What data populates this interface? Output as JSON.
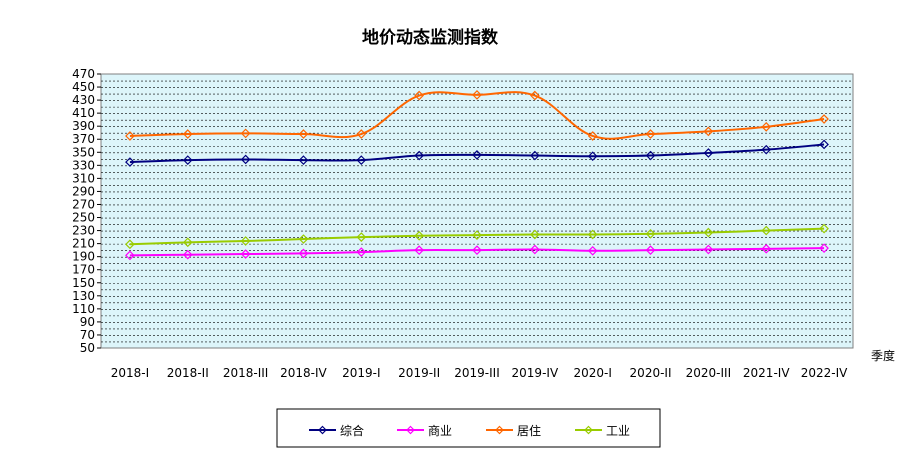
{
  "chart_data": {
    "type": "line",
    "title": "地价动态监测指数",
    "xlabel": "季度",
    "ylabel": "",
    "categories": [
      "2018-I",
      "2018-II",
      "2018-III",
      "2018-IV",
      "2019-I",
      "2019-II",
      "2019-III",
      "2019-IV",
      "2020-I",
      "2020-II",
      "2020-III",
      "2021-IV",
      "2022-IV"
    ],
    "ylim": [
      50,
      470
    ],
    "ytick_step": 10,
    "yticks": [
      "50",
      "70",
      "90",
      "110",
      "130",
      "150",
      "170",
      "190",
      "210",
      "230",
      "250",
      "270",
      "290",
      "310",
      "330",
      "350",
      "370",
      "390",
      "410",
      "430",
      "450",
      "470"
    ],
    "grid": true,
    "legend_position": "bottom",
    "series": [
      {
        "name": "综合",
        "color": "#000080",
        "values": [
          335,
          338,
          339,
          338,
          338,
          345,
          346,
          345,
          344,
          345,
          349,
          354,
          362
        ]
      },
      {
        "name": "商业",
        "color": "#FF00FF",
        "values": [
          192,
          193,
          194,
          195,
          197,
          200,
          200,
          201,
          199,
          200,
          201,
          202,
          203
        ]
      },
      {
        "name": "居住",
        "color": "#FF6600",
        "values": [
          375,
          378,
          379,
          378,
          378,
          437,
          438,
          437,
          375,
          378,
          382,
          389,
          401
        ]
      },
      {
        "name": "工业",
        "color": "#99CC00",
        "values": [
          209,
          212,
          214,
          217,
          220,
          222,
          223,
          224,
          224,
          225,
          227,
          230,
          233
        ]
      }
    ]
  }
}
